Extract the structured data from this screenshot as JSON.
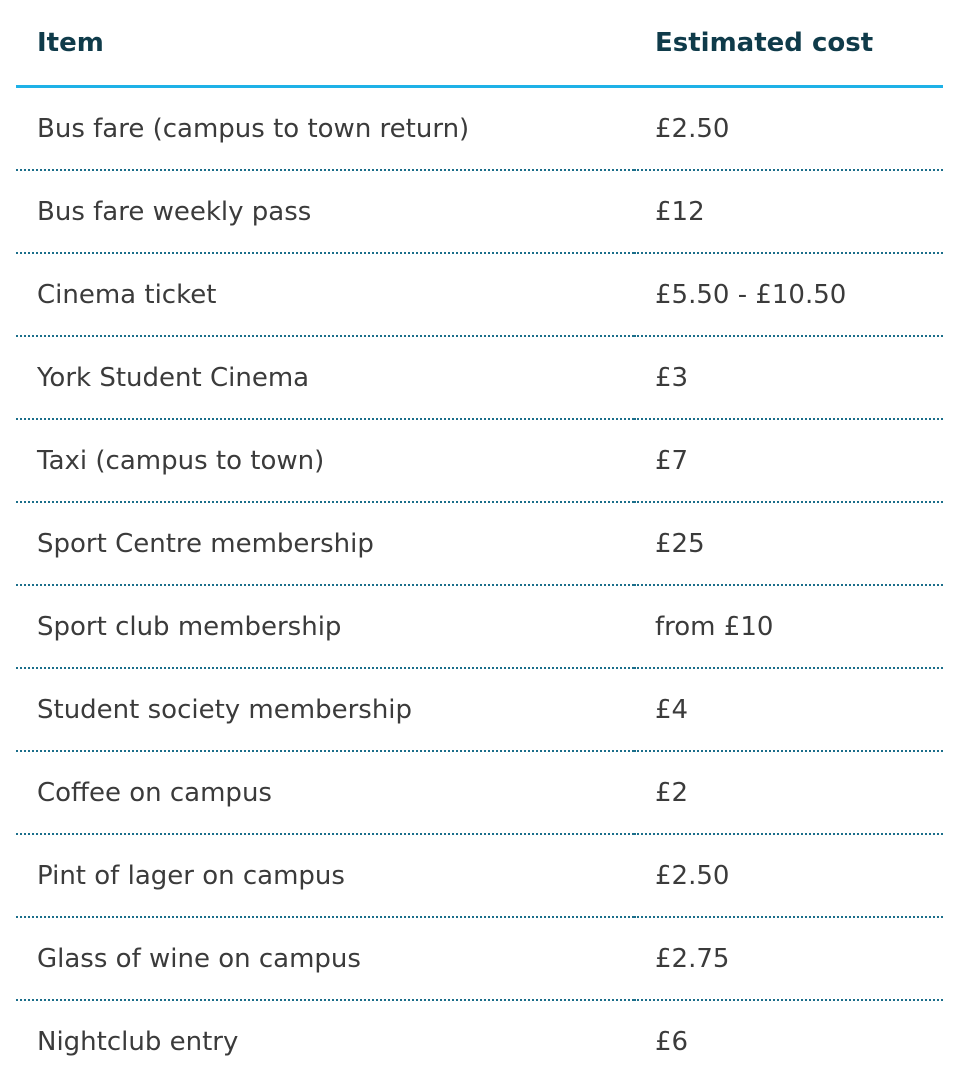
{
  "table": {
    "headers": [
      "Item",
      "Estimated cost"
    ],
    "rows": [
      [
        "Bus fare (campus to town return)",
        "£2.50"
      ],
      [
        "Bus fare weekly pass",
        "£12"
      ],
      [
        "Cinema ticket",
        "£5.50 - £10.50"
      ],
      [
        "York Student Cinema",
        "£3"
      ],
      [
        "Taxi (campus to town)",
        "£7"
      ],
      [
        "Sport Centre membership",
        "£25"
      ],
      [
        "Sport club membership",
        "from £10"
      ],
      [
        "Student society membership",
        "£4"
      ],
      [
        "Coffee on campus",
        "£2"
      ],
      [
        "Pint of lager on campus",
        "£2.50"
      ],
      [
        "Glass of wine on campus",
        "£2.75"
      ],
      [
        "Nightclub entry",
        "£6"
      ]
    ]
  },
  "colors": {
    "header_text": "#0f3b4a",
    "header_rule": "#1eb1e7",
    "row_rule": "#1b6e8a"
  }
}
